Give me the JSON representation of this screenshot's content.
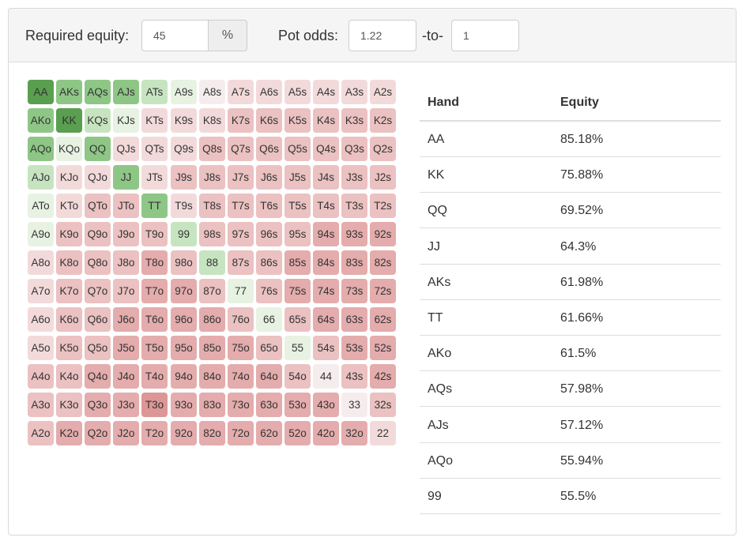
{
  "header": {
    "required_equity_label": "Required equity:",
    "required_equity_value": "45",
    "percent_addon": "%",
    "pot_odds_label": "Pot odds:",
    "pot_odds_value": "1.22",
    "to_label": "-to-",
    "pot_odds_to_value": "1"
  },
  "range_grid": {
    "ranks": [
      "A",
      "K",
      "Q",
      "J",
      "T",
      "9",
      "8",
      "7",
      "6",
      "5",
      "4",
      "3",
      "2"
    ],
    "colors": {
      "green_strong": "#5a9e50",
      "green_mid": "#8ec686",
      "green_light": "#c7e4c0",
      "green_pale": "#e7f2e3",
      "neutral": "#f5eded",
      "red_pale": "#f3dada",
      "red_light": "#ebc1c1",
      "red_mid": "#e4acac",
      "red_strong": "#dc9696"
    },
    "rows": [
      [
        "AA",
        "AKs",
        "AQs",
        "AJs",
        "ATs",
        "A9s",
        "A8s",
        "A7s",
        "A6s",
        "A5s",
        "A4s",
        "A3s",
        "A2s"
      ],
      [
        "AKo",
        "KK",
        "KQs",
        "KJs",
        "KTs",
        "K9s",
        "K8s",
        "K7s",
        "K6s",
        "K5s",
        "K4s",
        "K3s",
        "K2s"
      ],
      [
        "AQo",
        "KQo",
        "QQ",
        "QJs",
        "QTs",
        "Q9s",
        "Q8s",
        "Q7s",
        "Q6s",
        "Q5s",
        "Q4s",
        "Q3s",
        "Q2s"
      ],
      [
        "AJo",
        "KJo",
        "QJo",
        "JJ",
        "JTs",
        "J9s",
        "J8s",
        "J7s",
        "J6s",
        "J5s",
        "J4s",
        "J3s",
        "J2s"
      ],
      [
        "ATo",
        "KTo",
        "QTo",
        "JTo",
        "TT",
        "T9s",
        "T8s",
        "T7s",
        "T6s",
        "T5s",
        "T4s",
        "T3s",
        "T2s"
      ],
      [
        "A9o",
        "K9o",
        "Q9o",
        "J9o",
        "T9o",
        "99",
        "98s",
        "97s",
        "96s",
        "95s",
        "94s",
        "93s",
        "92s"
      ],
      [
        "A8o",
        "K8o",
        "Q8o",
        "J8o",
        "T8o",
        "98o",
        "88",
        "87s",
        "86s",
        "85s",
        "84s",
        "83s",
        "82s"
      ],
      [
        "A7o",
        "K7o",
        "Q7o",
        "J7o",
        "T7o",
        "97o",
        "87o",
        "77",
        "76s",
        "75s",
        "74s",
        "73s",
        "72s"
      ],
      [
        "A6o",
        "K6o",
        "Q6o",
        "J6o",
        "T6o",
        "96o",
        "86o",
        "76o",
        "66",
        "65s",
        "64s",
        "63s",
        "62s"
      ],
      [
        "A5o",
        "K5o",
        "Q5o",
        "J5o",
        "T5o",
        "95o",
        "85o",
        "75o",
        "65o",
        "55",
        "54s",
        "53s",
        "52s"
      ],
      [
        "A4o",
        "K4o",
        "Q4o",
        "J4o",
        "T4o",
        "94o",
        "84o",
        "74o",
        "64o",
        "54o",
        "44",
        "43s",
        "42s"
      ],
      [
        "A3o",
        "K3o",
        "Q3o",
        "J3o",
        "T3o",
        "93o",
        "83o",
        "73o",
        "63o",
        "53o",
        "43o",
        "33",
        "32s"
      ],
      [
        "A2o",
        "K2o",
        "Q2o",
        "J2o",
        "T2o",
        "92o",
        "82o",
        "72o",
        "62o",
        "52o",
        "42o",
        "32o",
        "22"
      ]
    ],
    "shade": [
      [
        "green_strong",
        "green_mid",
        "green_mid",
        "green_mid",
        "green_light",
        "green_pale",
        "neutral",
        "red_pale",
        "red_pale",
        "red_pale",
        "red_pale",
        "red_pale",
        "red_pale"
      ],
      [
        "green_mid",
        "green_strong",
        "green_light",
        "green_pale",
        "red_pale",
        "red_pale",
        "red_pale",
        "red_light",
        "red_light",
        "red_light",
        "red_light",
        "red_light",
        "red_light"
      ],
      [
        "green_mid",
        "green_pale",
        "green_mid",
        "red_pale",
        "red_pale",
        "red_pale",
        "red_light",
        "red_light",
        "red_light",
        "red_light",
        "red_light",
        "red_light",
        "red_light"
      ],
      [
        "green_light",
        "red_pale",
        "red_pale",
        "green_mid",
        "red_pale",
        "red_light",
        "red_light",
        "red_light",
        "red_light",
        "red_light",
        "red_light",
        "red_light",
        "red_light"
      ],
      [
        "green_pale",
        "red_pale",
        "red_light",
        "red_light",
        "green_mid",
        "red_pale",
        "red_light",
        "red_light",
        "red_light",
        "red_light",
        "red_light",
        "red_light",
        "red_light"
      ],
      [
        "green_pale",
        "red_light",
        "red_light",
        "red_light",
        "red_light",
        "green_light",
        "red_light",
        "red_light",
        "red_light",
        "red_light",
        "red_mid",
        "red_mid",
        "red_mid"
      ],
      [
        "red_pale",
        "red_light",
        "red_light",
        "red_light",
        "red_mid",
        "red_light",
        "green_light",
        "red_light",
        "red_light",
        "red_mid",
        "red_mid",
        "red_mid",
        "red_mid"
      ],
      [
        "red_pale",
        "red_light",
        "red_light",
        "red_light",
        "red_mid",
        "red_mid",
        "red_light",
        "green_pale",
        "red_light",
        "red_mid",
        "red_mid",
        "red_mid",
        "red_mid"
      ],
      [
        "red_pale",
        "red_light",
        "red_light",
        "red_mid",
        "red_mid",
        "red_mid",
        "red_mid",
        "red_light",
        "green_pale",
        "red_light",
        "red_mid",
        "red_mid",
        "red_mid"
      ],
      [
        "red_pale",
        "red_light",
        "red_light",
        "red_mid",
        "red_mid",
        "red_mid",
        "red_mid",
        "red_mid",
        "red_light",
        "green_pale",
        "red_light",
        "red_mid",
        "red_mid"
      ],
      [
        "red_light",
        "red_light",
        "red_mid",
        "red_mid",
        "red_mid",
        "red_mid",
        "red_mid",
        "red_mid",
        "red_mid",
        "red_light",
        "neutral",
        "red_light",
        "red_mid"
      ],
      [
        "red_light",
        "red_light",
        "red_mid",
        "red_mid",
        "red_strong",
        "red_mid",
        "red_mid",
        "red_mid",
        "red_mid",
        "red_mid",
        "red_mid",
        "neutral",
        "red_light"
      ],
      [
        "red_light",
        "red_mid",
        "red_mid",
        "red_mid",
        "red_mid",
        "red_mid",
        "red_mid",
        "red_mid",
        "red_mid",
        "red_mid",
        "red_mid",
        "red_mid",
        "red_pale"
      ]
    ]
  },
  "equity_table": {
    "headers": [
      "Hand",
      "Equity"
    ],
    "rows": [
      {
        "hand": "AA",
        "equity": "85.18%"
      },
      {
        "hand": "KK",
        "equity": "75.88%"
      },
      {
        "hand": "QQ",
        "equity": "69.52%"
      },
      {
        "hand": "JJ",
        "equity": "64.3%"
      },
      {
        "hand": "AKs",
        "equity": "61.98%"
      },
      {
        "hand": "TT",
        "equity": "61.66%"
      },
      {
        "hand": "AKo",
        "equity": "61.5%"
      },
      {
        "hand": "AQs",
        "equity": "57.98%"
      },
      {
        "hand": "AJs",
        "equity": "57.12%"
      },
      {
        "hand": "AQo",
        "equity": "55.94%"
      },
      {
        "hand": "99",
        "equity": "55.5%"
      }
    ]
  }
}
